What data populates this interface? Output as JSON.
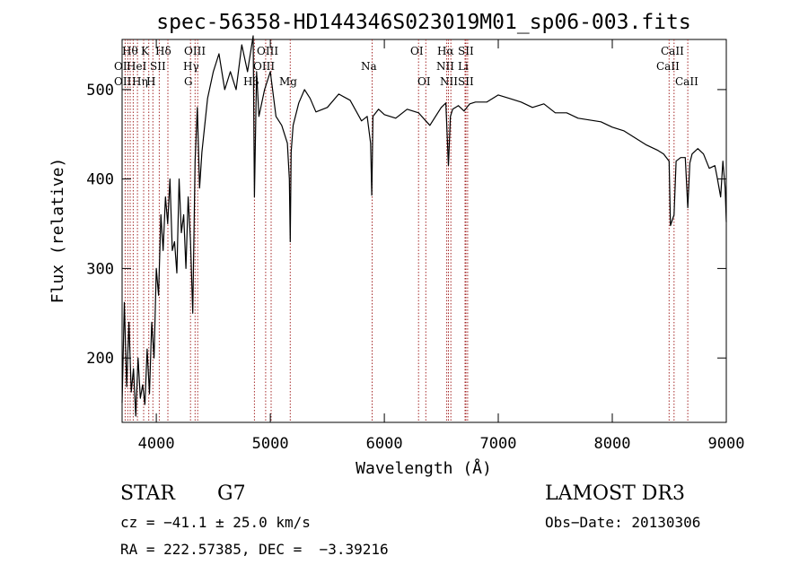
{
  "chart_data": {
    "type": "line",
    "title": "spec-56358-HD144346S023019M01_sp06-003.fits",
    "xlabel": "Wavelength (Å)",
    "ylabel": "Flux (relative)",
    "xlim": [
      3700,
      9000
    ],
    "ylim": [
      128,
      556
    ],
    "xticks": [
      4000,
      5000,
      6000,
      7000,
      8000,
      9000
    ],
    "yticks": [
      200,
      300,
      400,
      500
    ],
    "grid": false,
    "line_color": "#000000",
    "marker_color": "#a52a2a",
    "series": [
      {
        "x": [
          3700,
          3720,
          3740,
          3760,
          3780,
          3800,
          3820,
          3840,
          3860,
          3880,
          3900,
          3920,
          3940,
          3960,
          3980,
          4000,
          4020,
          4040,
          4060,
          4080,
          4100,
          4120,
          4140,
          4160,
          4180,
          4200,
          4220,
          4240,
          4260,
          4280,
          4300,
          4320,
          4340,
          4360,
          4380,
          4400,
          4450,
          4500,
          4550,
          4600,
          4650,
          4700,
          4750,
          4800,
          4850,
          4861,
          4880,
          4900,
          4950,
          5000,
          5050,
          5100,
          5150,
          5167,
          5175,
          5183,
          5200,
          5250,
          5300,
          5350,
          5400,
          5500,
          5600,
          5700,
          5800,
          5850,
          5880,
          5890,
          5895,
          5900,
          5950,
          6000,
          6100,
          6200,
          6300,
          6400,
          6500,
          6540,
          6563,
          6580,
          6600,
          6650,
          6700,
          6750,
          6800,
          6900,
          7000,
          7100,
          7200,
          7300,
          7400,
          7500,
          7600,
          7700,
          7800,
          7900,
          8000,
          8100,
          8200,
          8300,
          8400,
          8450,
          8498,
          8510,
          8542,
          8560,
          8600,
          8640,
          8662,
          8680,
          8700,
          8750,
          8800,
          8850,
          8900,
          8920,
          8950,
          8970,
          8990,
          9000
        ],
        "values": [
          150,
          262,
          168,
          240,
          162,
          188,
          135,
          200,
          155,
          170,
          148,
          210,
          160,
          240,
          200,
          300,
          270,
          360,
          320,
          380,
          350,
          400,
          320,
          330,
          295,
          400,
          340,
          360,
          300,
          380,
          330,
          250,
          420,
          480,
          390,
          430,
          490,
          520,
          540,
          500,
          520,
          500,
          550,
          520,
          560,
          380,
          520,
          470,
          500,
          520,
          470,
          460,
          440,
          400,
          330,
          430,
          460,
          485,
          500,
          490,
          475,
          480,
          495,
          488,
          465,
          470,
          440,
          382,
          420,
          470,
          478,
          472,
          468,
          478,
          474,
          460,
          480,
          485,
          415,
          470,
          478,
          482,
          476,
          484,
          486,
          486,
          494,
          490,
          486,
          480,
          484,
          474,
          474,
          468,
          466,
          464,
          458,
          454,
          446,
          438,
          432,
          428,
          420,
          348,
          360,
          420,
          424,
          424,
          368,
          418,
          428,
          434,
          428,
          412,
          415,
          402,
          380,
          420,
          390,
          352
        ]
      }
    ],
    "lines": {
      "top_row": [
        "Hθ",
        "K",
        "Hδ",
        "OIII",
        "OIII",
        "OI",
        "Hα",
        "SII",
        "CaII"
      ],
      "mid_row": [
        "OI",
        "HeI",
        "SII",
        "Hγ",
        "OIII",
        "Na",
        "NII",
        "Li",
        "CaII"
      ],
      "low_row": [
        "OII",
        "Hη",
        "H",
        "G",
        "Hβ",
        "Mg",
        "OI",
        "NII",
        "SII",
        "CaII"
      ],
      "wavelengths": [
        3727,
        3750,
        3771,
        3798,
        3835,
        3889,
        3934,
        3970,
        4026,
        4102,
        4300,
        4340,
        4363,
        4861,
        4959,
        5007,
        5175,
        5893,
        6300,
        6364,
        6548,
        6563,
        6584,
        6708,
        6716,
        6731,
        8498,
        8542,
        8662
      ]
    }
  },
  "info": {
    "object_class": "STAR",
    "subclass": "G7",
    "cz": "cz = −41.1 ± 25.0 km/s",
    "coords": "RA = 222.57385, DEC =  −3.39216",
    "survey": "LAMOST DR3",
    "obs_date": "Obs−Date: 20130306"
  }
}
